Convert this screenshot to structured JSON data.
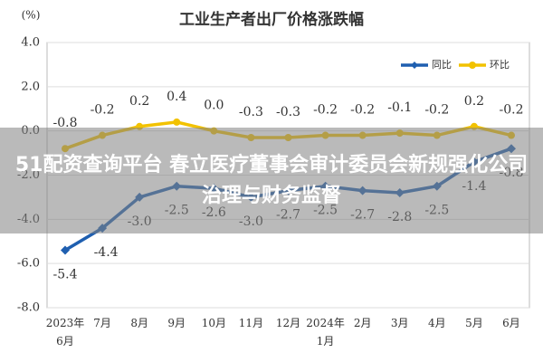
{
  "chart_data": {
    "type": "line",
    "title": "工业生产者出厂价格涨跌幅",
    "y_unit": "(%)",
    "categories": [
      "2023年\n6月",
      "7月",
      "8月",
      "9月",
      "10月",
      "11月",
      "12月",
      "2024年\n1月",
      "2月",
      "3月",
      "4月",
      "5月",
      "6月"
    ],
    "series": [
      {
        "name": "同比",
        "color": "#1f5fb0",
        "values": [
          -5.4,
          -4.4,
          -3.0,
          -2.5,
          -2.6,
          -3.0,
          -2.7,
          -2.5,
          -2.7,
          -2.8,
          -2.5,
          -1.4,
          -0.8
        ],
        "value_labels": [
          "-5.4",
          "-4.4",
          "-3.0",
          "-2.5",
          "-2.6",
          "-3.0",
          "-2.7",
          "-2.5",
          "-2.7",
          "-2.8",
          "-2.5",
          "-1.4",
          "-0.8"
        ]
      },
      {
        "name": "环比",
        "color": "#f2c200",
        "values": [
          -0.8,
          -0.2,
          0.2,
          0.4,
          0.0,
          -0.3,
          -0.3,
          -0.2,
          -0.2,
          -0.1,
          -0.2,
          0.2,
          -0.2
        ],
        "value_labels": [
          "-0.8",
          "-0.2",
          "0.2",
          "0.4",
          "0.0",
          "-0.3",
          "-0.3",
          "-0.2",
          "-0.2",
          "-0.1",
          "-0.2",
          "0.2",
          "-0.2"
        ]
      }
    ],
    "ylim": [
      -8,
      4
    ],
    "yticks": [
      {
        "value": -8,
        "label": "-8.0"
      },
      {
        "value": -6,
        "label": "-6.0"
      },
      {
        "value": -4,
        "label": "-4.0"
      },
      {
        "value": -2,
        "label": "-2.0"
      },
      {
        "value": 0,
        "label": "0.0"
      },
      {
        "value": 2,
        "label": "2.0"
      },
      {
        "value": 4,
        "label": "4.0"
      }
    ],
    "grid": true,
    "legend": "top-right"
  },
  "banner": "51配资查询平台 春立医疗董事会审计委员会新规强化公司治理与财务监督"
}
